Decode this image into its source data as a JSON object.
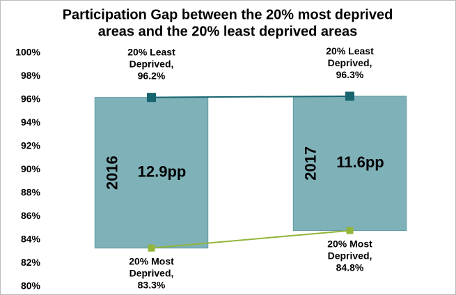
{
  "chart_data": {
    "type": "floating-gap",
    "title": [
      "Participation Gap between the 20% most deprived",
      "areas and the 20% least deprived areas"
    ],
    "categories": [
      "2016",
      "2017"
    ],
    "series": [
      {
        "name": "20% Least Deprived",
        "color": "#17646e",
        "values": [
          96.2,
          96.3
        ],
        "value_labels": [
          "20% Least Deprived, 96.2%",
          "20% Least Deprived, 96.3%"
        ]
      },
      {
        "name": "20% Most Deprived",
        "color": "#93b53a",
        "values": [
          83.3,
          84.8
        ],
        "value_labels": [
          "20% Most Deprived, 83.3%",
          "20% Most Deprived, 84.8%"
        ]
      }
    ],
    "gaps": {
      "color": "#7fb1b9",
      "values": [
        12.9,
        11.6
      ],
      "value_labels": [
        "12.9pp",
        "11.6pp"
      ]
    },
    "ylim": [
      80,
      100
    ],
    "yticks": [
      {
        "value": 80,
        "label": "80%"
      },
      {
        "value": 82,
        "label": "82%"
      },
      {
        "value": 84,
        "label": "84%"
      },
      {
        "value": 86,
        "label": "86%"
      },
      {
        "value": 88,
        "label": "88%"
      },
      {
        "value": 90,
        "label": "90%"
      },
      {
        "value": 92,
        "label": "92%"
      },
      {
        "value": 94,
        "label": "94%"
      },
      {
        "value": 96,
        "label": "96%"
      },
      {
        "value": 98,
        "label": "98%"
      },
      {
        "value": 100,
        "label": "100%"
      }
    ],
    "grid": false
  }
}
